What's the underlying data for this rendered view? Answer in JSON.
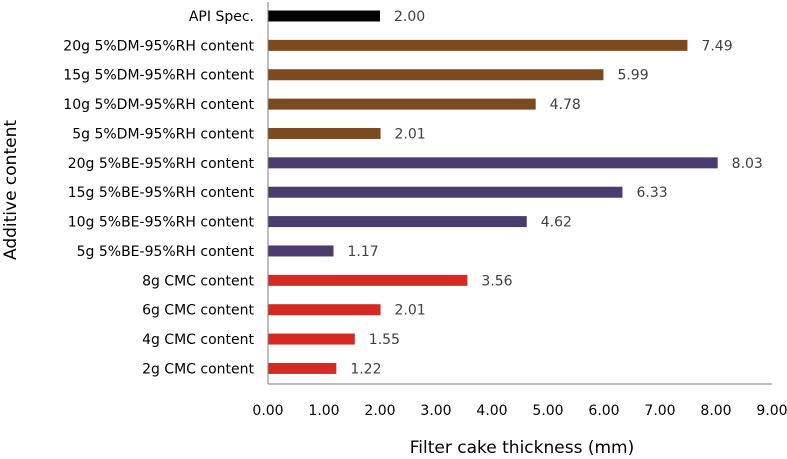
{
  "chart_data": {
    "type": "bar",
    "orientation": "horizontal",
    "xlabel": "Filter cake thickness (mm)",
    "ylabel": "Additive content",
    "xlim": [
      0,
      9
    ],
    "x_ticks": [
      "0.00",
      "1.00",
      "2.00",
      "3.00",
      "4.00",
      "5.00",
      "6.00",
      "7.00",
      "8.00",
      "9.00"
    ],
    "grid": false,
    "legend": "none",
    "categories": [
      "API Spec.",
      "20g 5%DM-95%RH content",
      "15g 5%DM-95%RH content",
      "10g 5%DM-95%RH content",
      "5g 5%DM-95%RH content",
      "20g 5%BE-95%RH content",
      "15g 5%BE-95%RH content",
      "10g 5%BE-95%RH content",
      "5g 5%BE-95%RH content",
      "8g CMC content",
      "6g CMC content",
      "4g CMC content",
      "2g CMC content"
    ],
    "values": [
      2.0,
      7.49,
      5.99,
      4.78,
      2.01,
      8.03,
      6.33,
      4.62,
      1.17,
      3.56,
      2.01,
      1.55,
      1.22
    ],
    "value_labels": [
      "2.00",
      "7.49",
      "5.99",
      "4.78",
      "2.01",
      "8.03",
      "6.33",
      "4.62",
      "1.17",
      "3.56",
      "2.01",
      "1.55",
      "1.22"
    ],
    "bar_colors": [
      "#000000",
      "#7b4a1f",
      "#7b4a1f",
      "#7b4a1f",
      "#7b4a1f",
      "#4b3b6e",
      "#4b3b6e",
      "#4b3b6e",
      "#4b3b6e",
      "#d42a22",
      "#d42a22",
      "#d42a22",
      "#d42a22"
    ],
    "axis_color": "#7f7f7f"
  }
}
